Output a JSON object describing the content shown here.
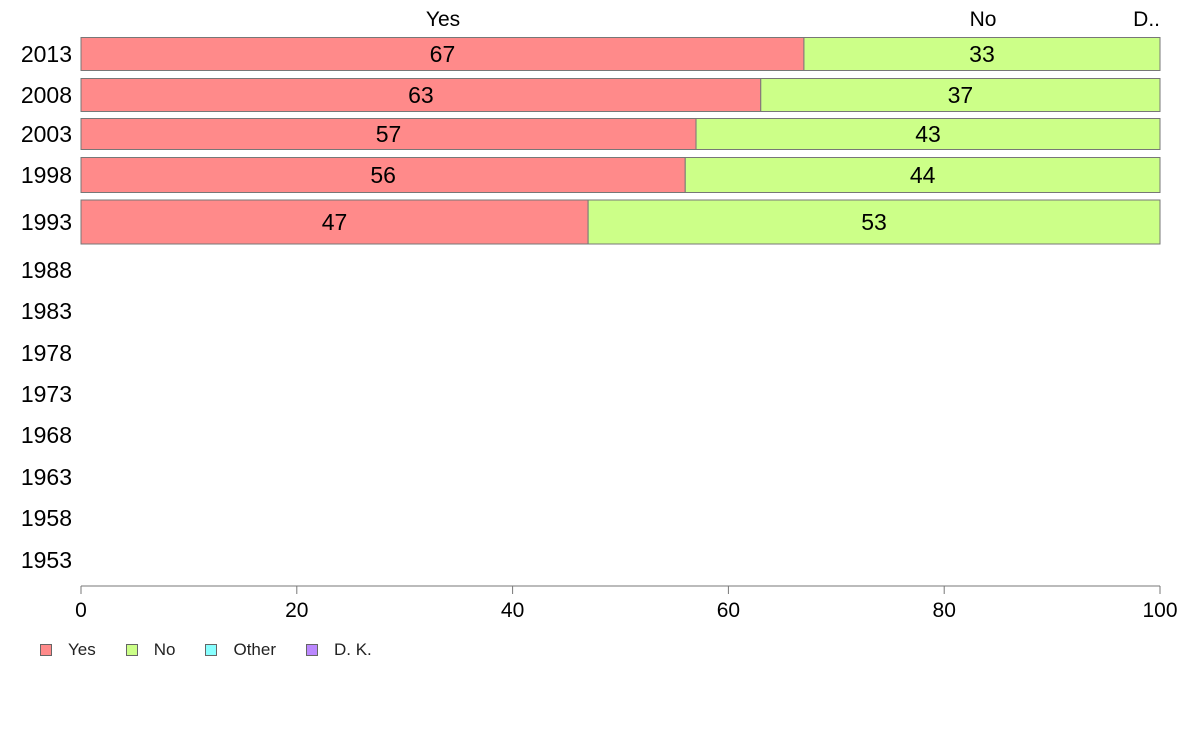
{
  "chart_data": {
    "type": "bar",
    "orientation": "horizontal",
    "stacked": true,
    "categories": [
      "2013",
      "2008",
      "2003",
      "1998",
      "1993",
      "1988",
      "1983",
      "1978",
      "1973",
      "1968",
      "1963",
      "1958",
      "1953"
    ],
    "series": [
      {
        "name": "Yes",
        "color": "#ff8a8a",
        "values": [
          67,
          63,
          57,
          56,
          47,
          null,
          null,
          null,
          null,
          null,
          null,
          null,
          null
        ]
      },
      {
        "name": "No",
        "color": "#ccff88",
        "values": [
          33,
          37,
          43,
          44,
          53,
          null,
          null,
          null,
          null,
          null,
          null,
          null,
          null
        ]
      },
      {
        "name": "Other",
        "color": "#88ffff",
        "values": [
          null,
          null,
          null,
          null,
          null,
          null,
          null,
          null,
          null,
          null,
          null,
          null,
          null
        ]
      },
      {
        "name": "D. K.",
        "color": "#bb88ff",
        "values": [
          null,
          null,
          null,
          null,
          null,
          null,
          null,
          null,
          null,
          null,
          null,
          null,
          null
        ]
      }
    ],
    "top_labels": [
      "Yes",
      "No",
      "D.."
    ],
    "xlim": [
      0,
      100
    ],
    "x_ticks": [
      0,
      20,
      40,
      60,
      80,
      100
    ],
    "title": "",
    "xlabel": "",
    "ylabel": "",
    "grid": false,
    "legend_position": "bottom-left"
  }
}
